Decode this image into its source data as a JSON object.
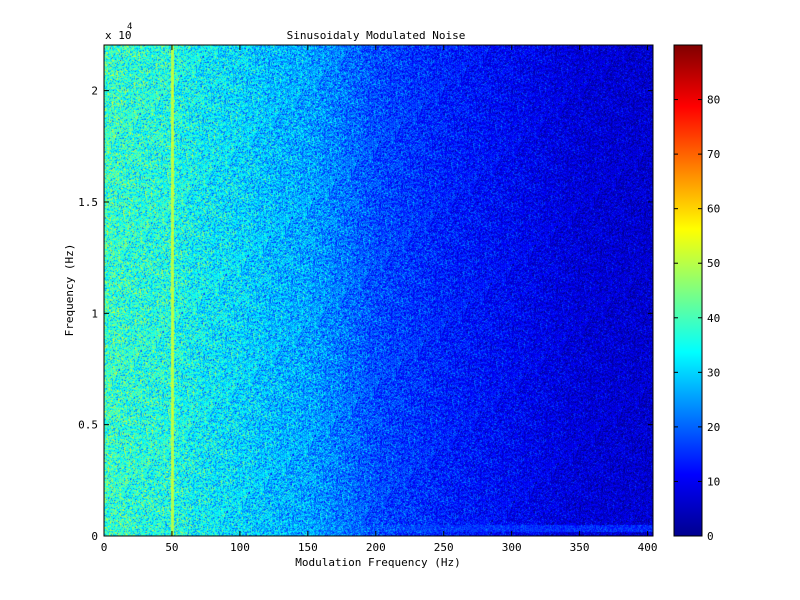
{
  "chart_data": {
    "type": "heatmap",
    "title": "Sinusoidaly Modulated Noise",
    "xlabel": "Modulation Frequency (Hz)",
    "ylabel": "Frequency (Hz)",
    "xlim": [
      0,
      404
    ],
    "ylim": [
      0,
      22050
    ],
    "x_ticks": [
      0,
      50,
      100,
      150,
      200,
      250,
      300,
      350,
      400
    ],
    "x_tick_labels": [
      "0",
      "50",
      "100",
      "150",
      "200",
      "250",
      "300",
      "350",
      "400"
    ],
    "y_ticks": [
      0,
      5000,
      10000,
      15000,
      20000
    ],
    "y_tick_labels": [
      "0",
      "0.5",
      "1",
      "1.5",
      "2"
    ],
    "y_exponent_label": {
      "base": "x 10",
      "exponent": "4"
    },
    "colormap": "jet",
    "clim": [
      0,
      90
    ],
    "colorbar_ticks": [
      0,
      10,
      20,
      30,
      40,
      50,
      60,
      70,
      80
    ],
    "colorbar_tick_labels": [
      "0",
      "10",
      "20",
      "30",
      "40",
      "50",
      "60",
      "70",
      "80"
    ],
    "intensity_profile_vs_modulation_frequency": {
      "x": [
        0,
        10,
        25,
        50,
        75,
        100,
        125,
        150,
        175,
        200,
        250,
        300,
        350,
        404
      ],
      "value": [
        39,
        38,
        37,
        36,
        33,
        31,
        28,
        26,
        22,
        18,
        14,
        11,
        8,
        7
      ]
    },
    "peak_line": {
      "x": 50,
      "value": 50
    },
    "bottom_band": {
      "y": 500,
      "value": 15
    },
    "grid": false
  }
}
